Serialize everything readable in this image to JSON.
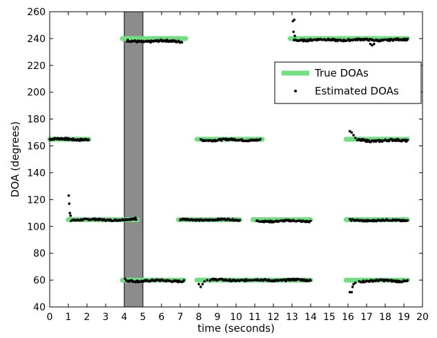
{
  "chart_data": {
    "type": "scatter",
    "title": "",
    "xlabel": "time (seconds)",
    "ylabel": "DOA (degrees)",
    "xlim": [
      0,
      20
    ],
    "ylim": [
      40,
      260
    ],
    "xticks": [
      0,
      1,
      2,
      3,
      4,
      5,
      6,
      7,
      8,
      9,
      10,
      11,
      12,
      13,
      14,
      15,
      16,
      17,
      18,
      19,
      20
    ],
    "yticks": [
      40,
      60,
      80,
      100,
      120,
      140,
      160,
      180,
      200,
      220,
      240,
      260
    ],
    "grid": false,
    "legend": {
      "placement": "upper-right-inside",
      "entries": [
        "True DOAs",
        "Estimated DOAs"
      ]
    },
    "shaded_region": {
      "x_start": 4,
      "x_end": 5,
      "color": "#8c8c8c"
    },
    "colors": {
      "true_doa": "#6ee07f",
      "estimated_doa": "#000000"
    },
    "series": [
      {
        "name": "True DOAs",
        "kind": "segments",
        "segments": [
          {
            "x0": 0.0,
            "x1": 2.1,
            "y": 165
          },
          {
            "x0": 1.0,
            "x1": 4.7,
            "y": 105
          },
          {
            "x0": 3.9,
            "x1": 7.3,
            "y": 240
          },
          {
            "x0": 3.9,
            "x1": 7.2,
            "y": 60
          },
          {
            "x0": 7.9,
            "x1": 11.4,
            "y": 165
          },
          {
            "x0": 6.9,
            "x1": 10.2,
            "y": 105
          },
          {
            "x0": 7.9,
            "x1": 14.0,
            "y": 60
          },
          {
            "x0": 10.9,
            "x1": 14.0,
            "y": 105
          },
          {
            "x0": 12.9,
            "x1": 19.2,
            "y": 240
          },
          {
            "x0": 15.9,
            "x1": 19.2,
            "y": 165
          },
          {
            "x0": 15.9,
            "x1": 19.2,
            "y": 105
          },
          {
            "x0": 15.9,
            "x1": 19.2,
            "y": 60
          }
        ]
      },
      {
        "name": "Estimated DOAs",
        "kind": "tracks",
        "tracks": [
          {
            "x0": 0.0,
            "x1": 2.1,
            "y": 165,
            "jitter": 0.8
          },
          {
            "x0": 1.15,
            "x1": 4.65,
            "y": 105,
            "jitter": 0.6
          },
          {
            "x0": 4.15,
            "x1": 7.1,
            "y": 238,
            "jitter": 0.8
          },
          {
            "x0": 4.1,
            "x1": 7.2,
            "y": 59.5,
            "jitter": 0.7
          },
          {
            "x0": 8.1,
            "x1": 11.3,
            "y": 164.5,
            "jitter": 0.7
          },
          {
            "x0": 7.0,
            "x1": 10.2,
            "y": 105,
            "jitter": 0.6
          },
          {
            "x0": 8.6,
            "x1": 14.0,
            "y": 60,
            "jitter": 0.7
          },
          {
            "x0": 11.1,
            "x1": 14.0,
            "y": 104,
            "jitter": 0.6
          },
          {
            "x0": 13.1,
            "x1": 19.2,
            "y": 239,
            "jitter": 0.7
          },
          {
            "x0": 16.5,
            "x1": 19.2,
            "y": 164,
            "jitter": 0.8
          },
          {
            "x0": 16.1,
            "x1": 19.2,
            "y": 104.5,
            "jitter": 0.6
          },
          {
            "x0": 16.6,
            "x1": 19.2,
            "y": 59.5,
            "jitter": 0.7
          }
        ],
        "points": [
          {
            "x": 1.02,
            "y": 123
          },
          {
            "x": 1.05,
            "y": 117
          },
          {
            "x": 1.08,
            "y": 110
          },
          {
            "x": 1.12,
            "y": 108
          },
          {
            "x": 4.05,
            "y": 61
          },
          {
            "x": 4.6,
            "y": 106.5
          },
          {
            "x": 8.0,
            "y": 57
          },
          {
            "x": 8.1,
            "y": 55
          },
          {
            "x": 8.2,
            "y": 57
          },
          {
            "x": 8.3,
            "y": 59
          },
          {
            "x": 8.45,
            "y": 60
          },
          {
            "x": 13.05,
            "y": 253
          },
          {
            "x": 13.12,
            "y": 254
          },
          {
            "x": 13.08,
            "y": 245
          },
          {
            "x": 13.15,
            "y": 242
          },
          {
            "x": 16.1,
            "y": 51
          },
          {
            "x": 16.2,
            "y": 51
          },
          {
            "x": 16.25,
            "y": 55
          },
          {
            "x": 16.3,
            "y": 57
          },
          {
            "x": 16.4,
            "y": 58
          },
          {
            "x": 16.1,
            "y": 171
          },
          {
            "x": 16.2,
            "y": 170
          },
          {
            "x": 16.3,
            "y": 168
          },
          {
            "x": 16.4,
            "y": 166
          },
          {
            "x": 17.2,
            "y": 236
          },
          {
            "x": 17.3,
            "y": 235
          },
          {
            "x": 17.4,
            "y": 236
          }
        ]
      }
    ]
  }
}
